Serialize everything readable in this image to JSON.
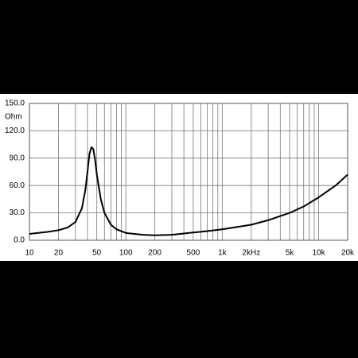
{
  "chart_data": {
    "type": "line",
    "y_unit_label": "Ohm",
    "x": [
      10,
      15,
      20,
      25,
      30,
      35,
      38,
      40,
      42,
      44,
      46,
      48,
      50,
      55,
      60,
      70,
      80,
      100,
      150,
      200,
      300,
      500,
      700,
      1000,
      2000,
      3000,
      5000,
      7000,
      10000,
      15000,
      20000
    ],
    "series": [
      {
        "color": "#000000",
        "values": [
          7,
          9,
          11,
          14,
          20,
          35,
          55,
          75,
          95,
          102,
          100,
          88,
          72,
          45,
          30,
          17,
          12,
          8,
          6,
          5.5,
          6,
          8.5,
          10,
          12,
          17,
          22,
          30,
          37,
          47,
          60,
          72
        ]
      }
    ],
    "xscale": "log",
    "xlim": [
      10,
      20000
    ],
    "ylim": [
      0,
      150
    ],
    "xticks": [
      10,
      20,
      50,
      100,
      200,
      500,
      {
        "value": 1000,
        "label": "1k"
      },
      {
        "value": 2000,
        "label": "2kHz"
      },
      {
        "value": 5000,
        "label": "5k"
      },
      {
        "value": 10000,
        "label": "10k"
      },
      {
        "value": 20000,
        "label": "20k"
      }
    ],
    "x_minor_grid": [
      30,
      40,
      60,
      70,
      80,
      90,
      300,
      400,
      600,
      700,
      800,
      900,
      3000,
      4000,
      6000,
      7000,
      8000,
      9000
    ],
    "yticks": [
      {
        "value": 0,
        "label": "0.0"
      },
      {
        "value": 30,
        "label": "30.0"
      },
      {
        "value": 60,
        "label": "60.0"
      },
      {
        "value": 90,
        "label": "90.0"
      },
      {
        "value": 120,
        "label": "120.0"
      },
      {
        "value": 150,
        "label": "150.0"
      }
    ],
    "grid": true
  }
}
